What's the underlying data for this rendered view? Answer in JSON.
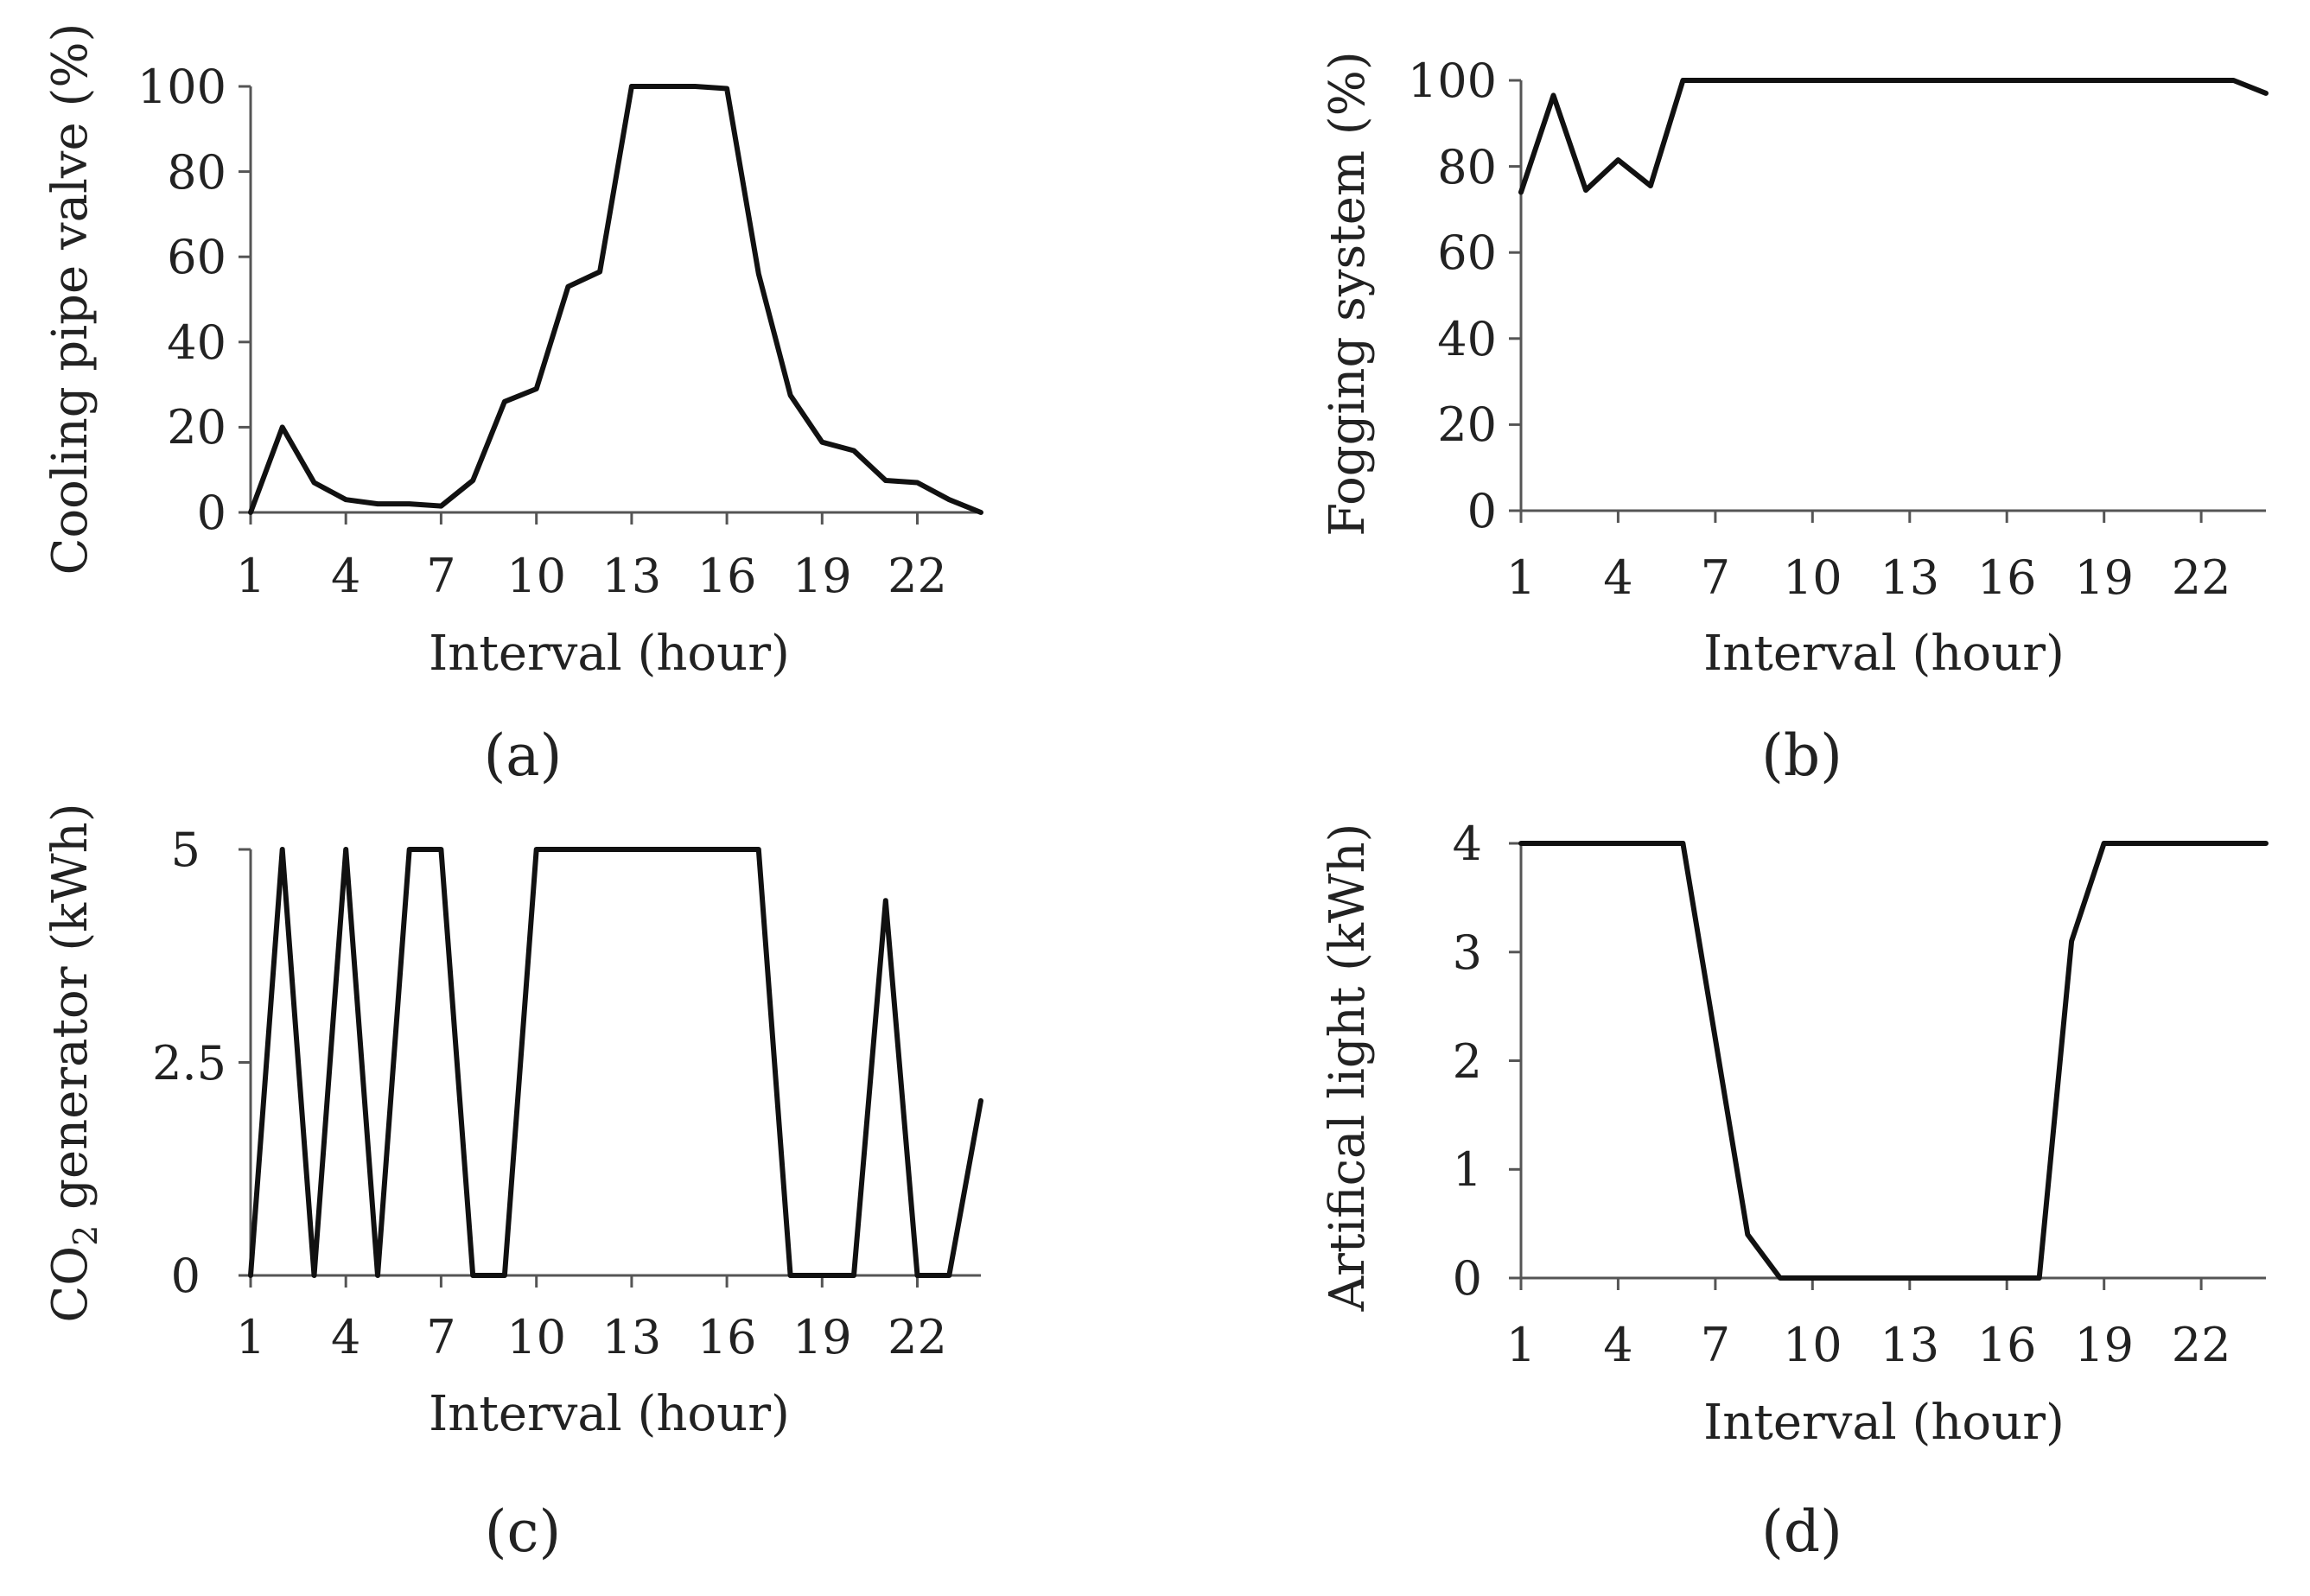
{
  "chart_data": [
    {
      "type": "line",
      "panel_label": "(a)",
      "title": "",
      "xlabel": "Interval (hour)",
      "ylabel": "Cooling pipe valve (%)",
      "xlim": [
        1,
        24
      ],
      "ylim": [
        0,
        100
      ],
      "x_ticks": [
        "1",
        "4",
        "7",
        "10",
        "13",
        "16",
        "19",
        "22"
      ],
      "y_ticks": [
        "0",
        "20",
        "40",
        "60",
        "80",
        "100"
      ],
      "grid": false,
      "series": [
        {
          "name": "Cooling pipe valve",
          "x": [
            1,
            2,
            3,
            4,
            5,
            6,
            7,
            8,
            9,
            10,
            11,
            12,
            13,
            14,
            15,
            16,
            17,
            18,
            19,
            20,
            21,
            22,
            23,
            24
          ],
          "values": [
            0,
            20,
            7,
            3,
            2,
            2,
            1.5,
            7.5,
            26,
            29,
            53,
            56.5,
            100,
            100,
            100,
            99.5,
            56,
            27.5,
            16.5,
            14.5,
            7.5,
            7,
            3,
            0
          ]
        }
      ]
    },
    {
      "type": "line",
      "panel_label": "(b)",
      "title": "",
      "xlabel": "Interval (hour)",
      "ylabel": "Fogging system (%)",
      "xlim": [
        1,
        24
      ],
      "ylim": [
        0,
        100
      ],
      "x_ticks": [
        "1",
        "4",
        "7",
        "10",
        "13",
        "16",
        "19",
        "22"
      ],
      "y_ticks": [
        "0",
        "20",
        "40",
        "60",
        "80",
        "100"
      ],
      "grid": false,
      "series": [
        {
          "name": "Fogging system",
          "x": [
            1,
            2,
            3,
            4,
            5,
            6,
            7,
            8,
            9,
            10,
            11,
            12,
            13,
            14,
            15,
            16,
            17,
            18,
            19,
            20,
            21,
            22,
            23,
            24
          ],
          "values": [
            74,
            96.5,
            74.5,
            81.5,
            75.5,
            100,
            100,
            100,
            100,
            100,
            100,
            100,
            100,
            100,
            100,
            100,
            100,
            100,
            100,
            100,
            100,
            100,
            100,
            97
          ]
        }
      ]
    },
    {
      "type": "line",
      "panel_label": "(c)",
      "title": "",
      "xlabel": "Interval (hour)",
      "ylabel_main": "CO",
      "ylabel_sub": "2",
      "ylabel_rest": " generator (kWh)",
      "xlim": [
        1,
        24
      ],
      "ylim": [
        0,
        5
      ],
      "x_ticks": [
        "1",
        "4",
        "7",
        "10",
        "13",
        "16",
        "19",
        "22"
      ],
      "y_ticks": [
        "0",
        "2.5",
        "5"
      ],
      "grid": false,
      "series": [
        {
          "name": "CO2 generator",
          "x": [
            1,
            2,
            3,
            4,
            5,
            6,
            7,
            8,
            9,
            10,
            11,
            12,
            13,
            14,
            15,
            16,
            17,
            18,
            19,
            20,
            21,
            22,
            23,
            24
          ],
          "values": [
            0,
            5,
            0,
            5,
            0,
            5,
            5,
            0,
            0,
            5,
            5,
            5,
            5,
            5,
            5,
            5,
            5,
            0,
            0,
            0,
            4.4,
            0,
            0,
            2.05
          ]
        }
      ]
    },
    {
      "type": "line",
      "panel_label": "(d)",
      "title": "",
      "xlabel": "Interval (hour)",
      "ylabel": "Artifical light (kWh)",
      "xlim": [
        1,
        24
      ],
      "ylim": [
        0,
        4
      ],
      "x_ticks": [
        "1",
        "4",
        "7",
        "10",
        "13",
        "16",
        "19",
        "22"
      ],
      "y_ticks": [
        "0",
        "1",
        "2",
        "3",
        "4"
      ],
      "grid": false,
      "series": [
        {
          "name": "Artifical light",
          "x": [
            1,
            2,
            3,
            4,
            5,
            6,
            7,
            8,
            9,
            10,
            11,
            12,
            13,
            14,
            15,
            16,
            17,
            18,
            19,
            20,
            21,
            22,
            23,
            24
          ],
          "values": [
            4,
            4,
            4,
            4,
            4,
            4,
            2.2,
            0.4,
            0,
            0,
            0,
            0,
            0,
            0,
            0,
            0,
            0,
            3.1,
            4,
            4,
            4,
            4,
            4,
            4
          ]
        }
      ]
    }
  ]
}
